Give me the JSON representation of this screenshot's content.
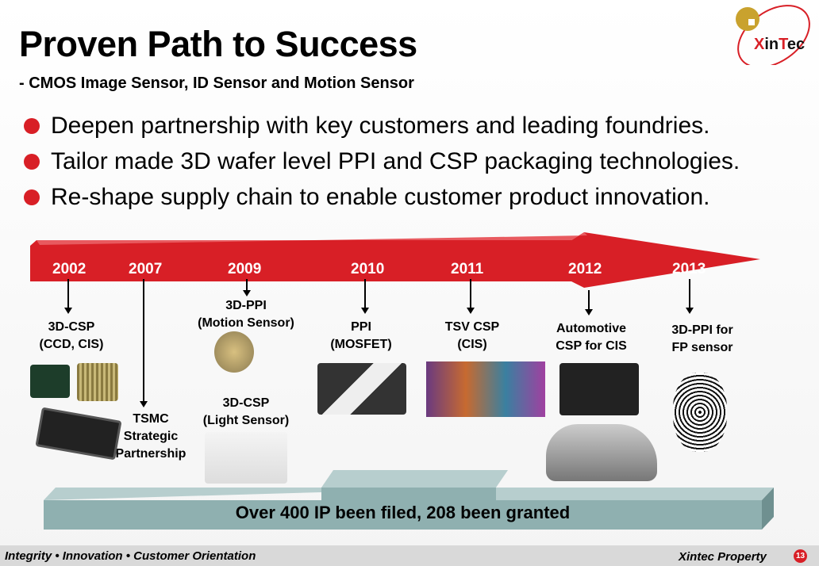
{
  "header": {
    "title": "Proven Path to Success",
    "subtitle": "- CMOS Image Sensor, ID Sensor and Motion Sensor",
    "logo_text": "Xintec"
  },
  "bullets": [
    "Deepen partnership with key customers and leading foundries.",
    "Tailor made 3D wafer level PPI and CSP packaging technologies.",
    "Re-shape supply chain to enable customer product innovation."
  ],
  "timeline": {
    "years": [
      "2002",
      "2007",
      "2009",
      "2010",
      "2011",
      "2012",
      "2013"
    ],
    "milestones": [
      {
        "l1": "3D-CSP",
        "l2": "(CCD, CIS)"
      },
      {
        "l1": "TSMC",
        "l2": "Strategic",
        "l3": "Partnership"
      },
      {
        "l1": "3D-PPI",
        "l2": "(Motion Sensor)"
      },
      {
        "l1": "3D-CSP",
        "l2": "(Light Sensor)"
      },
      {
        "l1": "PPI",
        "l2": "(MOSFET)"
      },
      {
        "l1": "TSV CSP",
        "l2": "(CIS)"
      },
      {
        "l1": "Automotive",
        "l2": "CSP for CIS"
      },
      {
        "l1": "3D-PPI for",
        "l2": "FP sensor"
      }
    ],
    "base_text": "Over 400 IP been filed, 208 been granted",
    "arrow_color": "#d81f26"
  },
  "footer": {
    "left": "Integrity • Innovation • Customer Orientation",
    "right": "Xintec Property",
    "page": "13"
  }
}
